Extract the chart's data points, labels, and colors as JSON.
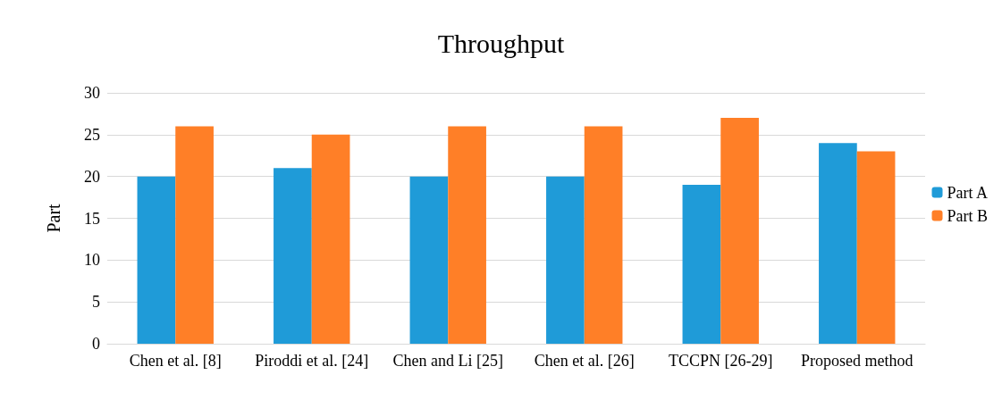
{
  "chart_data": {
    "type": "bar",
    "title": "Throughput",
    "ylabel": "Part",
    "categories": [
      "Chen et al. [8]",
      "Piroddi et al. [24]",
      "Chen and Li [25]",
      "Chen et al. [26]",
      "TCCPN [26-29]",
      "Proposed method"
    ],
    "series": [
      {
        "name": "Part A",
        "color": "#1f9bd8",
        "values": [
          20,
          21,
          20,
          20,
          19,
          24
        ]
      },
      {
        "name": "Part B",
        "color": "#ff7f27",
        "values": [
          26,
          25,
          26,
          26,
          27,
          23
        ]
      }
    ],
    "ylim": [
      0,
      30
    ],
    "yticks": [
      0,
      5,
      10,
      15,
      20,
      25,
      30
    ],
    "grid": "y",
    "legend": "right"
  }
}
